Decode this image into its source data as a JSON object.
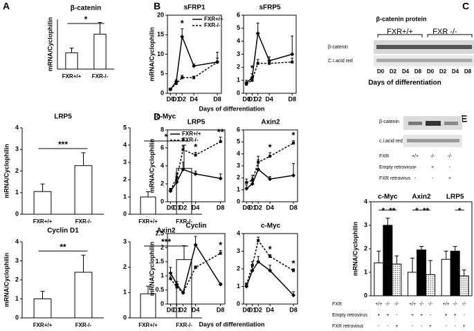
{
  "panel_labels": [
    "A",
    "B",
    "C",
    "D",
    "E"
  ],
  "panel_xlabels": {
    "B": "Days of differentiation",
    "D": "Days of differentiation"
  },
  "blot_c": {
    "title": "β-catenin protein",
    "groups": [
      "FXR+/+",
      "FXR -/-"
    ],
    "rows": [
      "β-catenin",
      "C.I.acid red"
    ],
    "lanes": [
      "D0",
      "D2",
      "D4",
      "D8",
      "D0",
      "D2",
      "D4",
      "D8"
    ],
    "xlabel": "Days of differentiation"
  },
  "blot_e": {
    "rows": [
      "β-catenin",
      "c.i.acid red"
    ],
    "conditions": [
      {
        "label": "FXR",
        "values": [
          "+/+",
          "-/-",
          "-/-"
        ]
      },
      {
        "label": "Empty retrovirus",
        "values": [
          "+",
          "+",
          "-"
        ]
      },
      {
        "label": "FXR retrovirus",
        "values": [
          "-",
          "-",
          "+"
        ]
      }
    ]
  },
  "chart_data": [
    {
      "type": "bar",
      "title": "β-catenin",
      "ylabel": "mRNA/Cyclophilin",
      "categories": [
        "FXR+/+",
        "FXR-/-"
      ],
      "values": [
        1.05,
        2.25
      ],
      "errors": [
        0.3,
        0.75
      ],
      "ylim": [
        0,
        3.2
      ],
      "significance": "*"
    },
    {
      "type": "bar",
      "title": "LRP5",
      "ylabel": "mRNA/Cyclophilin",
      "categories": [
        "FXR+/+",
        "FXR-/-"
      ],
      "values": [
        1.05,
        2.25
      ],
      "errors": [
        0.35,
        0.6
      ],
      "ylim": [
        0,
        4
      ],
      "yticks": [
        0,
        1,
        2,
        3,
        4
      ],
      "significance": "***"
    },
    {
      "type": "bar",
      "title": "c-Myc",
      "categories": [
        "FXR+/+",
        "FXR-/-"
      ],
      "values": [
        1.0,
        2.65
      ],
      "errors": [
        0.3,
        1.35
      ],
      "ylim": [
        0,
        5
      ],
      "yticks": [
        0,
        1,
        2,
        3,
        4,
        5
      ],
      "significance": "*"
    },
    {
      "type": "bar",
      "title": "Cyclin D1",
      "ylabel": "mRNA/Cyclophilin",
      "categories": [
        "FXR+/+",
        "FXR-/-"
      ],
      "values": [
        1.0,
        2.4
      ],
      "errors": [
        0.4,
        0.9
      ],
      "ylim": [
        0,
        4
      ],
      "yticks": [
        0,
        1,
        2,
        3,
        4
      ],
      "significance": "**"
    },
    {
      "type": "bar",
      "title": "Axin2",
      "categories": [
        "FXR+/+",
        "FXR-/-"
      ],
      "values": [
        0.95,
        2.3
      ],
      "errors": [
        0.3,
        0.55
      ],
      "ylim": [
        0,
        3
      ],
      "yticks": [
        0,
        1,
        2,
        3
      ],
      "significance": "***"
    },
    {
      "type": "line",
      "title": "sFRP1",
      "ylabel": "mRNA/Cyclophilin",
      "x": [
        0,
        1,
        2,
        4,
        8
      ],
      "xlim": [
        -0.5,
        8.7
      ],
      "xticks": [
        {
          "value": 0,
          "label": "D0"
        },
        {
          "value": 1,
          "label": "D1"
        },
        {
          "value": 2,
          "label": "D2"
        },
        {
          "value": 4,
          "label": "D4"
        },
        {
          "value": 8,
          "label": "D8"
        }
      ],
      "ylim": [
        0,
        20
      ],
      "yticks": [
        0,
        5,
        10,
        15,
        20
      ],
      "legend": "upper right",
      "series": [
        {
          "name": "FXR+/+",
          "color": "#000000",
          "dash": false,
          "values": [
            1,
            3,
            14.5,
            7,
            8
          ],
          "errors": [
            0.3,
            0.5,
            2,
            0.5,
            2.5
          ]
        },
        {
          "name": "FXR-/-",
          "color": "#000000",
          "dash": true,
          "values": [
            1,
            2.5,
            4,
            4,
            8
          ],
          "errors": [
            0.2,
            0.4,
            0.6,
            0.4,
            1
          ]
        }
      ],
      "stars": [
        {
          "x": 2,
          "label": "*"
        }
      ]
    },
    {
      "type": "line",
      "title": "sFRP5",
      "x": [
        0,
        1,
        2,
        4,
        8
      ],
      "xlim": [
        -0.5,
        8.7
      ],
      "xticks": [
        {
          "value": 0,
          "label": "D0"
        },
        {
          "value": 1,
          "label": "D1"
        },
        {
          "value": 2,
          "label": "D2"
        },
        {
          "value": 4,
          "label": "D4"
        },
        {
          "value": 8,
          "label": "D8"
        }
      ],
      "ylim": [
        0,
        6
      ],
      "yticks": [
        0,
        1,
        2,
        3,
        4,
        5,
        6
      ],
      "series": [
        {
          "color": "#000000",
          "dash": false,
          "values": [
            0.8,
            1.2,
            4.6,
            2.5,
            3.0
          ],
          "errors": [
            0.2,
            0.3,
            0.8,
            0.3,
            1.4
          ]
        },
        {
          "color": "#000000",
          "dash": true,
          "values": [
            0.7,
            1.0,
            2.3,
            2.3,
            2.4
          ],
          "errors": [
            0.1,
            0.2,
            0.3,
            0.2,
            0.3
          ]
        }
      ],
      "stars": [
        {
          "x": 1,
          "label": "*"
        }
      ]
    },
    {
      "type": "line",
      "title": "LRP5",
      "ylabel": "mRNA/Cyclophilin",
      "x": [
        0,
        1,
        2,
        4,
        8
      ],
      "xlim": [
        -0.5,
        8.7
      ],
      "xticks": [
        {
          "value": 0,
          "label": "D0"
        },
        {
          "value": 1,
          "label": "D1"
        },
        {
          "value": 2,
          "label": "D2"
        },
        {
          "value": 4,
          "label": "D4"
        },
        {
          "value": 8,
          "label": "D8"
        }
      ],
      "ylim": [
        0,
        8
      ],
      "yticks": [
        0,
        2,
        4,
        6,
        8
      ],
      "legend": "upper left",
      "series": [
        {
          "name": "FXR+/+",
          "color": "#000000",
          "dash": false,
          "values": [
            1.2,
            2.2,
            3.6,
            3.1,
            2.6
          ],
          "errors": [
            0.3,
            0.8,
            0.8,
            0.3,
            0.5
          ]
        },
        {
          "name": "FXR-/-",
          "color": "#000000",
          "dash": true,
          "values": [
            1.3,
            2.7,
            5.8,
            5.2,
            6.7
          ],
          "errors": [
            0.2,
            0.5,
            0.4,
            0.3,
            0.5
          ]
        }
      ],
      "stars": [
        {
          "x": 2,
          "label": "*"
        },
        {
          "x": 4,
          "label": "*"
        },
        {
          "x": 8,
          "label": "**"
        }
      ]
    },
    {
      "type": "line",
      "title": "Axin2",
      "x": [
        0,
        1,
        2,
        4,
        8
      ],
      "xlim": [
        -0.5,
        8.7
      ],
      "xticks": [
        {
          "value": 0,
          "label": "D0"
        },
        {
          "value": 1,
          "label": "D1"
        },
        {
          "value": 2,
          "label": "D2"
        },
        {
          "value": 4,
          "label": "D4"
        },
        {
          "value": 8,
          "label": "D8"
        }
      ],
      "ylim": [
        0,
        6
      ],
      "yticks": [
        0,
        1,
        2,
        3,
        4,
        5,
        6
      ],
      "series": [
        {
          "color": "#000000",
          "dash": false,
          "values": [
            1.1,
            1.5,
            2.7,
            1.9,
            2.2
          ],
          "errors": [
            0.3,
            0.5,
            0.8,
            0.2,
            1.0
          ]
        },
        {
          "color": "#000000",
          "dash": true,
          "values": [
            1.6,
            1.8,
            3.3,
            3.8,
            4.9
          ],
          "errors": [
            0.3,
            0.4,
            0.5,
            0.3,
            0.2
          ]
        }
      ],
      "stars": [
        {
          "x": 4,
          "label": "*"
        },
        {
          "x": 8,
          "label": "*"
        }
      ]
    },
    {
      "type": "line",
      "title": "Cyclin",
      "ylabel": "mRNA/Cyclophilin",
      "x": [
        0,
        1,
        2,
        4,
        8
      ],
      "xlim": [
        -0.5,
        8.7
      ],
      "xticks": [
        {
          "value": 0,
          "label": "D0"
        },
        {
          "value": 1,
          "label": "D1"
        },
        {
          "value": 2,
          "label": "D2"
        },
        {
          "value": 4,
          "label": "D4"
        },
        {
          "value": 8,
          "label": "D8"
        }
      ],
      "ylim": [
        0,
        2.5
      ],
      "yticks": [
        0,
        0.5,
        1,
        1.5,
        2,
        2.5
      ],
      "series": [
        {
          "color": "#000000",
          "dash": false,
          "values": [
            1.1,
            0.7,
            0.4,
            2.1,
            0.7
          ],
          "errors": [
            0.2,
            0.1,
            0.05,
            0.3,
            0.05
          ]
        },
        {
          "color": "#000000",
          "dash": true,
          "values": [
            0.9,
            0.6,
            0.4,
            1.3,
            1.8
          ],
          "errors": [
            0.1,
            0.05,
            0.05,
            0.05,
            0.1
          ]
        }
      ],
      "stars": [
        {
          "x": 8,
          "label": "*"
        }
      ]
    },
    {
      "type": "line",
      "title": "c-Myc",
      "x": [
        0,
        1,
        2,
        4,
        8
      ],
      "xlim": [
        -0.5,
        8.7
      ],
      "xticks": [
        {
          "value": 0,
          "label": "D0"
        },
        {
          "value": 1,
          "label": "D1"
        },
        {
          "value": 2,
          "label": "D2"
        },
        {
          "value": 4,
          "label": "D4"
        },
        {
          "value": 8,
          "label": "D8"
        }
      ],
      "ylim": [
        0,
        4
      ],
      "yticks": [
        0,
        1,
        2,
        3,
        4
      ],
      "series": [
        {
          "color": "#000000",
          "dash": false,
          "values": [
            1.0,
            1.9,
            2.4,
            1.9,
            0.5
          ],
          "errors": [
            0.1,
            0.3,
            0.3,
            0.3,
            0.2
          ]
        },
        {
          "color": "#000000",
          "dash": true,
          "values": [
            1.1,
            2.2,
            3.6,
            2.7,
            1.9
          ],
          "errors": [
            0.1,
            0.2,
            0.2,
            0.1,
            0.1
          ]
        }
      ],
      "stars": [
        {
          "x": 4,
          "label": "*"
        },
        {
          "x": 8,
          "label": "*"
        }
      ]
    },
    {
      "type": "groupbar",
      "ylabel": "mRNA/Cyclophilin",
      "categories": [
        "c-Myc",
        "Axin2",
        "LRP5"
      ],
      "ylim": [
        0,
        4
      ],
      "yticks": [
        0,
        1,
        2,
        3,
        4
      ],
      "series": [
        {
          "color": "#ffffff",
          "values": [
            1.4,
            1.0,
            1.55
          ],
          "errors": [
            0.5,
            0.6,
            0.35
          ]
        },
        {
          "color": "#000000",
          "values": [
            3.0,
            1.95,
            1.9
          ],
          "errors": [
            0.3,
            0.15,
            0.2
          ]
        },
        {
          "color": "#c8c8c8",
          "values": [
            1.35,
            0.9,
            0.85
          ],
          "errors": [
            0.35,
            0.6,
            0.25
          ]
        }
      ],
      "significance": [
        [
          "*",
          "**"
        ],
        [
          "*",
          "**"
        ],
        [
          null,
          "*"
        ]
      ],
      "conditions": [
        {
          "label": "FXR",
          "values": [
            "+/+",
            "-/-",
            "-/-",
            "+/+",
            "-/-",
            "-/-",
            "+/+",
            "-/-",
            "-/-"
          ]
        },
        {
          "label": "Empty retrovirus",
          "values": [
            "+",
            "+",
            "-",
            "+",
            "+",
            "-",
            "+",
            "+",
            "-"
          ]
        },
        {
          "label": "FXR retrovirus",
          "values": [
            "-",
            "-",
            "+",
            "-",
            "-",
            "+",
            "-",
            "-",
            "+"
          ]
        }
      ]
    }
  ]
}
